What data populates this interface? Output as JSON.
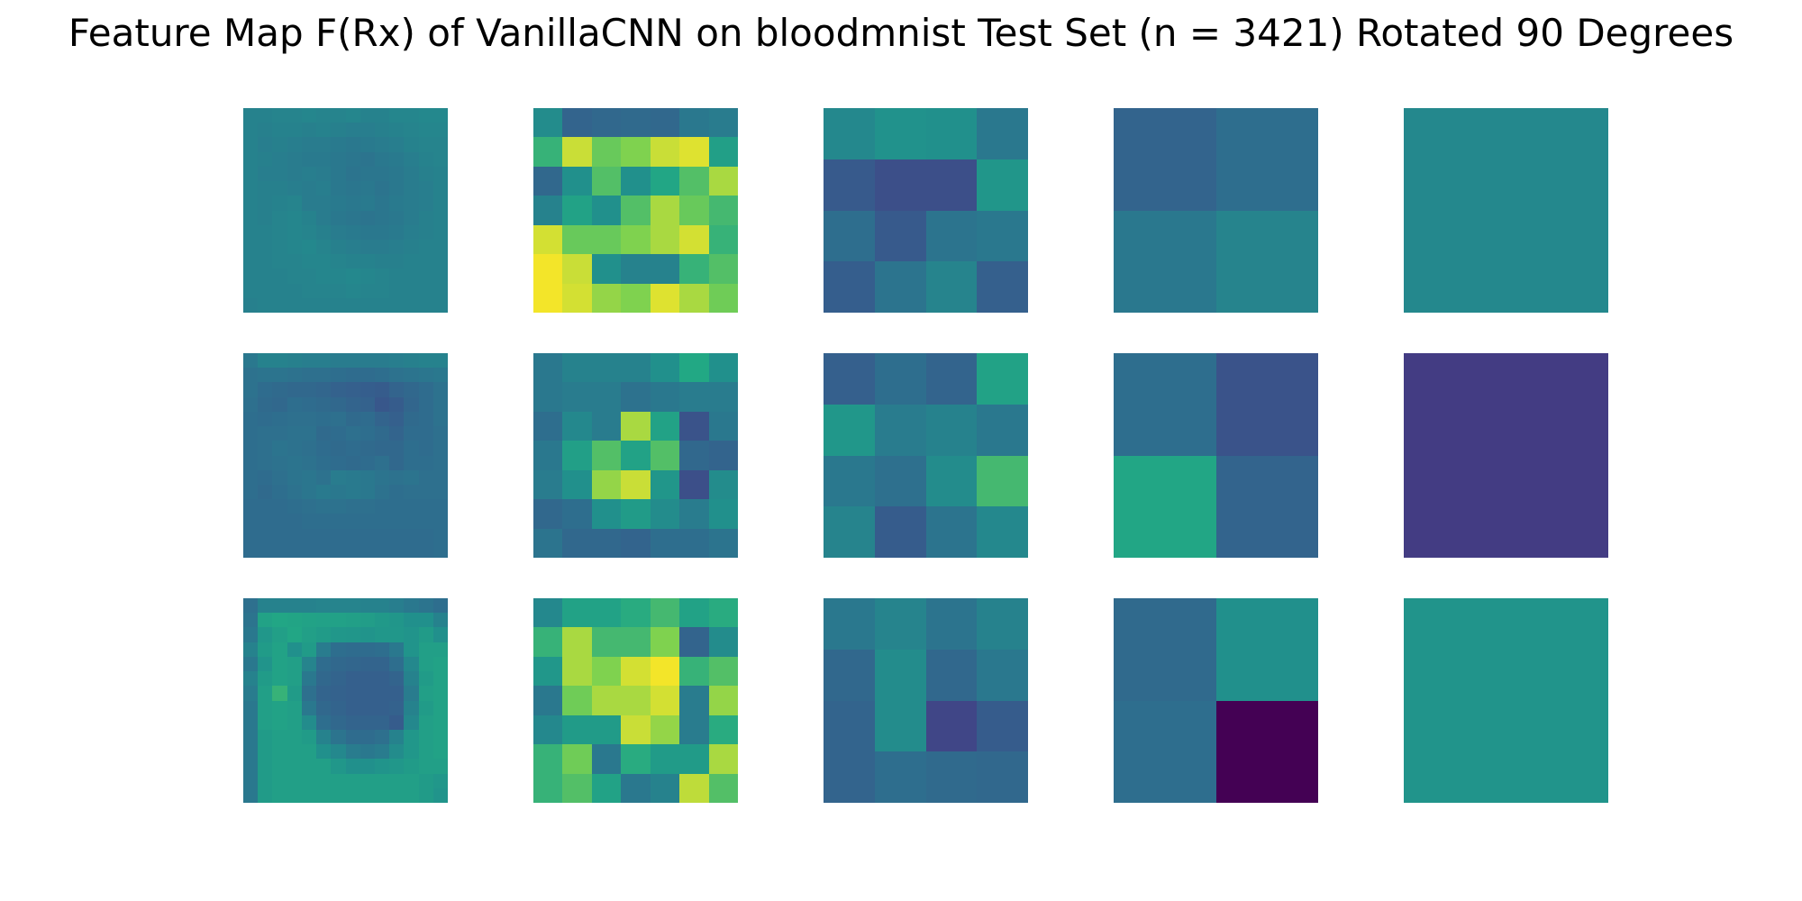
{
  "chart_data": {
    "type": "heatmap",
    "title": "Feature Map F(Rx) of VanillaCNN on bloodmnist Test Set (n = 3421) Rotated 90 Degrees",
    "colormap": "viridis",
    "axes": "off",
    "layout": {
      "rows": 3,
      "cols": 5
    },
    "value_scale": "viridis colormap position, 0 = dark purple, 1 = yellow (no colorbar printed)",
    "panels": [
      {
        "row": 0,
        "col": 0,
        "size": 14,
        "values": [
          [
            0.55,
            0.55,
            0.56,
            0.56,
            0.57,
            0.56,
            0.56,
            0.57,
            0.55,
            0.55,
            0.57,
            0.57,
            0.58,
            0.58
          ],
          [
            0.55,
            0.54,
            0.55,
            0.55,
            0.54,
            0.55,
            0.54,
            0.53,
            0.53,
            0.54,
            0.55,
            0.56,
            0.57,
            0.57
          ],
          [
            0.55,
            0.53,
            0.54,
            0.53,
            0.52,
            0.52,
            0.51,
            0.5,
            0.51,
            0.52,
            0.53,
            0.55,
            0.56,
            0.56
          ],
          [
            0.55,
            0.54,
            0.53,
            0.52,
            0.51,
            0.51,
            0.5,
            0.49,
            0.48,
            0.5,
            0.51,
            0.53,
            0.55,
            0.56
          ],
          [
            0.55,
            0.53,
            0.53,
            0.52,
            0.53,
            0.52,
            0.5,
            0.48,
            0.49,
            0.49,
            0.5,
            0.52,
            0.54,
            0.55
          ],
          [
            0.55,
            0.54,
            0.54,
            0.53,
            0.52,
            0.53,
            0.5,
            0.49,
            0.5,
            0.48,
            0.5,
            0.52,
            0.53,
            0.55
          ],
          [
            0.55,
            0.54,
            0.55,
            0.56,
            0.52,
            0.52,
            0.51,
            0.5,
            0.51,
            0.49,
            0.51,
            0.52,
            0.53,
            0.55
          ],
          [
            0.55,
            0.54,
            0.56,
            0.57,
            0.55,
            0.52,
            0.5,
            0.49,
            0.48,
            0.49,
            0.5,
            0.52,
            0.54,
            0.55
          ],
          [
            0.55,
            0.55,
            0.56,
            0.57,
            0.56,
            0.54,
            0.52,
            0.51,
            0.5,
            0.5,
            0.51,
            0.53,
            0.54,
            0.55
          ],
          [
            0.55,
            0.55,
            0.56,
            0.57,
            0.58,
            0.56,
            0.54,
            0.53,
            0.52,
            0.52,
            0.53,
            0.54,
            0.55,
            0.55
          ],
          [
            0.55,
            0.55,
            0.56,
            0.56,
            0.57,
            0.57,
            0.56,
            0.55,
            0.55,
            0.54,
            0.54,
            0.55,
            0.55,
            0.55
          ],
          [
            0.55,
            0.55,
            0.55,
            0.56,
            0.56,
            0.57,
            0.57,
            0.58,
            0.57,
            0.56,
            0.55,
            0.55,
            0.55,
            0.55
          ],
          [
            0.55,
            0.55,
            0.55,
            0.55,
            0.56,
            0.56,
            0.56,
            0.57,
            0.56,
            0.56,
            0.55,
            0.55,
            0.55,
            0.55
          ],
          [
            0.54,
            0.55,
            0.55,
            0.55,
            0.55,
            0.55,
            0.55,
            0.55,
            0.55,
            0.55,
            0.55,
            0.55,
            0.55,
            0.55
          ]
        ]
      },
      {
        "row": 0,
        "col": 1,
        "size": 7,
        "values": [
          [
            0.6,
            0.4,
            0.42,
            0.43,
            0.42,
            0.5,
            0.52
          ],
          [
            0.78,
            0.95,
            0.85,
            0.88,
            0.95,
            0.97,
            0.7
          ],
          [
            0.42,
            0.62,
            0.82,
            0.62,
            0.74,
            0.82,
            0.92
          ],
          [
            0.55,
            0.72,
            0.62,
            0.82,
            0.92,
            0.85,
            0.8
          ],
          [
            0.96,
            0.85,
            0.85,
            0.88,
            0.92,
            0.96,
            0.78
          ],
          [
            0.99,
            0.95,
            0.62,
            0.55,
            0.55,
            0.78,
            0.82
          ],
          [
            0.99,
            0.96,
            0.9,
            0.88,
            0.97,
            0.92,
            0.86
          ]
        ]
      },
      {
        "row": 0,
        "col": 2,
        "size": 4,
        "values": [
          [
            0.58,
            0.63,
            0.62,
            0.5
          ],
          [
            0.35,
            0.3,
            0.3,
            0.65
          ],
          [
            0.45,
            0.35,
            0.48,
            0.5
          ],
          [
            0.37,
            0.48,
            0.56,
            0.38
          ]
        ]
      },
      {
        "row": 0,
        "col": 3,
        "size": 2,
        "values": [
          [
            0.4,
            0.45
          ],
          [
            0.5,
            0.56
          ]
        ]
      },
      {
        "row": 0,
        "col": 4,
        "size": 1,
        "values": [
          [
            0.58
          ]
        ]
      },
      {
        "row": 1,
        "col": 0,
        "size": 14,
        "values": [
          [
            0.5,
            0.55,
            0.55,
            0.54,
            0.53,
            0.53,
            0.52,
            0.52,
            0.52,
            0.52,
            0.53,
            0.54,
            0.55,
            0.55
          ],
          [
            0.47,
            0.48,
            0.48,
            0.47,
            0.46,
            0.46,
            0.45,
            0.44,
            0.44,
            0.45,
            0.47,
            0.48,
            0.49,
            0.5
          ],
          [
            0.47,
            0.44,
            0.43,
            0.42,
            0.42,
            0.41,
            0.39,
            0.38,
            0.37,
            0.36,
            0.4,
            0.42,
            0.44,
            0.47
          ],
          [
            0.46,
            0.43,
            0.42,
            0.45,
            0.44,
            0.43,
            0.42,
            0.4,
            0.39,
            0.34,
            0.36,
            0.41,
            0.44,
            0.47
          ],
          [
            0.45,
            0.44,
            0.45,
            0.46,
            0.46,
            0.45,
            0.46,
            0.43,
            0.44,
            0.4,
            0.38,
            0.43,
            0.44,
            0.47
          ],
          [
            0.45,
            0.46,
            0.46,
            0.47,
            0.47,
            0.43,
            0.44,
            0.46,
            0.45,
            0.43,
            0.4,
            0.44,
            0.44,
            0.46
          ],
          [
            0.45,
            0.46,
            0.48,
            0.47,
            0.46,
            0.44,
            0.43,
            0.44,
            0.43,
            0.42,
            0.42,
            0.45,
            0.44,
            0.46
          ],
          [
            0.45,
            0.46,
            0.47,
            0.48,
            0.47,
            0.45,
            0.44,
            0.43,
            0.44,
            0.46,
            0.42,
            0.45,
            0.45,
            0.46
          ],
          [
            0.45,
            0.44,
            0.46,
            0.48,
            0.49,
            0.47,
            0.52,
            0.51,
            0.5,
            0.48,
            0.47,
            0.48,
            0.46,
            0.46
          ],
          [
            0.45,
            0.43,
            0.45,
            0.47,
            0.49,
            0.51,
            0.5,
            0.51,
            0.5,
            0.47,
            0.45,
            0.46,
            0.46,
            0.46
          ],
          [
            0.44,
            0.44,
            0.44,
            0.45,
            0.46,
            0.47,
            0.47,
            0.46,
            0.46,
            0.45,
            0.45,
            0.45,
            0.45,
            0.45
          ],
          [
            0.44,
            0.44,
            0.44,
            0.44,
            0.45,
            0.45,
            0.45,
            0.45,
            0.45,
            0.45,
            0.45,
            0.45,
            0.45,
            0.45
          ],
          [
            0.44,
            0.44,
            0.44,
            0.44,
            0.44,
            0.44,
            0.44,
            0.44,
            0.44,
            0.44,
            0.44,
            0.44,
            0.44,
            0.45
          ],
          [
            0.44,
            0.44,
            0.44,
            0.44,
            0.44,
            0.44,
            0.44,
            0.44,
            0.44,
            0.44,
            0.44,
            0.44,
            0.44,
            0.45
          ]
        ]
      },
      {
        "row": 1,
        "col": 1,
        "size": 7,
        "values": [
          [
            0.5,
            0.55,
            0.55,
            0.55,
            0.62,
            0.75,
            0.62
          ],
          [
            0.5,
            0.52,
            0.52,
            0.47,
            0.5,
            0.52,
            0.52
          ],
          [
            0.45,
            0.58,
            0.52,
            0.92,
            0.72,
            0.32,
            0.5
          ],
          [
            0.5,
            0.7,
            0.82,
            0.72,
            0.82,
            0.42,
            0.4
          ],
          [
            0.52,
            0.62,
            0.9,
            0.95,
            0.65,
            0.3,
            0.6
          ],
          [
            0.42,
            0.45,
            0.62,
            0.68,
            0.6,
            0.52,
            0.62
          ],
          [
            0.48,
            0.42,
            0.42,
            0.4,
            0.45,
            0.45,
            0.48
          ]
        ]
      },
      {
        "row": 1,
        "col": 2,
        "size": 4,
        "values": [
          [
            0.38,
            0.45,
            0.4,
            0.72
          ],
          [
            0.66,
            0.52,
            0.55,
            0.5
          ],
          [
            0.5,
            0.46,
            0.6,
            0.8
          ],
          [
            0.56,
            0.36,
            0.48,
            0.58
          ]
        ]
      },
      {
        "row": 1,
        "col": 3,
        "size": 2,
        "values": [
          [
            0.45,
            0.32
          ],
          [
            0.74,
            0.4
          ]
        ]
      },
      {
        "row": 1,
        "col": 4,
        "size": 1,
        "values": [
          [
            0.22
          ]
        ]
      },
      {
        "row": 2,
        "col": 0,
        "size": 14,
        "values": [
          [
            0.46,
            0.55,
            0.55,
            0.55,
            0.55,
            0.56,
            0.56,
            0.56,
            0.55,
            0.55,
            0.53,
            0.5,
            0.48,
            0.45
          ],
          [
            0.48,
            0.72,
            0.74,
            0.73,
            0.72,
            0.71,
            0.71,
            0.7,
            0.69,
            0.67,
            0.65,
            0.62,
            0.62,
            0.55
          ],
          [
            0.5,
            0.66,
            0.7,
            0.74,
            0.7,
            0.68,
            0.66,
            0.65,
            0.64,
            0.66,
            0.66,
            0.64,
            0.68,
            0.62
          ],
          [
            0.55,
            0.68,
            0.72,
            0.62,
            0.68,
            0.52,
            0.45,
            0.44,
            0.44,
            0.45,
            0.5,
            0.64,
            0.7,
            0.7
          ],
          [
            0.5,
            0.64,
            0.72,
            0.7,
            0.56,
            0.44,
            0.42,
            0.41,
            0.4,
            0.4,
            0.45,
            0.58,
            0.7,
            0.72
          ],
          [
            0.55,
            0.68,
            0.72,
            0.7,
            0.5,
            0.42,
            0.4,
            0.38,
            0.38,
            0.38,
            0.4,
            0.55,
            0.68,
            0.72
          ],
          [
            0.52,
            0.7,
            0.78,
            0.68,
            0.46,
            0.4,
            0.39,
            0.38,
            0.38,
            0.38,
            0.38,
            0.52,
            0.7,
            0.72
          ],
          [
            0.5,
            0.7,
            0.72,
            0.7,
            0.5,
            0.42,
            0.4,
            0.38,
            0.38,
            0.38,
            0.39,
            0.55,
            0.68,
            0.72
          ],
          [
            0.5,
            0.7,
            0.72,
            0.7,
            0.6,
            0.45,
            0.42,
            0.4,
            0.4,
            0.4,
            0.36,
            0.58,
            0.7,
            0.72
          ],
          [
            0.5,
            0.68,
            0.7,
            0.7,
            0.68,
            0.55,
            0.48,
            0.44,
            0.44,
            0.46,
            0.55,
            0.66,
            0.7,
            0.72
          ],
          [
            0.5,
            0.68,
            0.7,
            0.7,
            0.7,
            0.62,
            0.58,
            0.52,
            0.5,
            0.52,
            0.6,
            0.66,
            0.7,
            0.72
          ],
          [
            0.5,
            0.68,
            0.7,
            0.7,
            0.7,
            0.7,
            0.66,
            0.62,
            0.62,
            0.64,
            0.66,
            0.68,
            0.7,
            0.7
          ],
          [
            0.5,
            0.68,
            0.7,
            0.7,
            0.7,
            0.7,
            0.7,
            0.7,
            0.7,
            0.7,
            0.7,
            0.7,
            0.68,
            0.66
          ],
          [
            0.5,
            0.68,
            0.7,
            0.7,
            0.7,
            0.7,
            0.7,
            0.7,
            0.7,
            0.7,
            0.7,
            0.7,
            0.68,
            0.64
          ]
        ]
      },
      {
        "row": 2,
        "col": 1,
        "size": 7,
        "values": [
          [
            0.58,
            0.72,
            0.72,
            0.76,
            0.8,
            0.72,
            0.76
          ],
          [
            0.78,
            0.92,
            0.8,
            0.8,
            0.88,
            0.4,
            0.6
          ],
          [
            0.66,
            0.92,
            0.88,
            0.96,
            0.99,
            0.78,
            0.82
          ],
          [
            0.5,
            0.86,
            0.92,
            0.92,
            0.96,
            0.52,
            0.9
          ],
          [
            0.58,
            0.68,
            0.68,
            0.95,
            0.9,
            0.52,
            0.76
          ],
          [
            0.78,
            0.86,
            0.5,
            0.76,
            0.68,
            0.68,
            0.92
          ],
          [
            0.78,
            0.82,
            0.72,
            0.5,
            0.55,
            0.94,
            0.82
          ]
        ]
      },
      {
        "row": 2,
        "col": 2,
        "size": 4,
        "values": [
          [
            0.5,
            0.56,
            0.48,
            0.55
          ],
          [
            0.42,
            0.6,
            0.42,
            0.5
          ],
          [
            0.4,
            0.6,
            0.26,
            0.36
          ],
          [
            0.4,
            0.45,
            0.43,
            0.42
          ]
        ]
      },
      {
        "row": 2,
        "col": 3,
        "size": 2,
        "values": [
          [
            0.43,
            0.62
          ],
          [
            0.45,
            0.0
          ]
        ]
      },
      {
        "row": 2,
        "col": 4,
        "size": 1,
        "values": [
          [
            0.64
          ]
        ]
      }
    ]
  }
}
